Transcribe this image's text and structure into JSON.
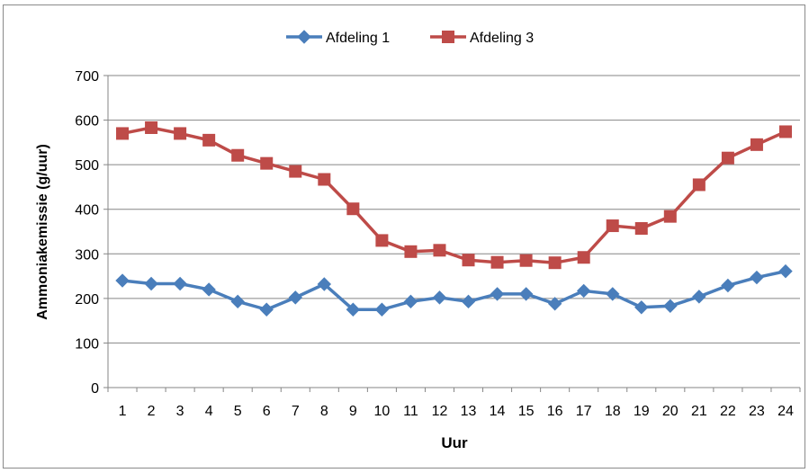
{
  "chart_data": {
    "type": "line",
    "title": "",
    "xlabel": "Uur",
    "ylabel": "Ammoniakemissie (g/uur)",
    "x": [
      1,
      2,
      3,
      4,
      5,
      6,
      7,
      8,
      9,
      10,
      11,
      12,
      13,
      14,
      15,
      16,
      17,
      18,
      19,
      20,
      21,
      22,
      23,
      24
    ],
    "ylim": [
      0,
      700
    ],
    "yticks": [
      0,
      100,
      200,
      300,
      400,
      500,
      600,
      700
    ],
    "grid": true,
    "legend_position": "top",
    "series": [
      {
        "name": "Afdeling 1",
        "color": "#4A7EBB",
        "marker": "diamond",
        "values": [
          240,
          233,
          233,
          220,
          193,
          175,
          202,
          232,
          175,
          175,
          193,
          202,
          193,
          210,
          210,
          188,
          217,
          210,
          180,
          183,
          204,
          229,
          247,
          261
        ]
      },
      {
        "name": "Afdeling 3",
        "color": "#BE4B48",
        "marker": "square",
        "values": [
          570,
          583,
          570,
          555,
          521,
          503,
          485,
          467,
          401,
          330,
          305,
          308,
          286,
          281,
          285,
          280,
          292,
          363,
          357,
          384,
          455,
          515,
          545,
          574
        ]
      }
    ]
  }
}
